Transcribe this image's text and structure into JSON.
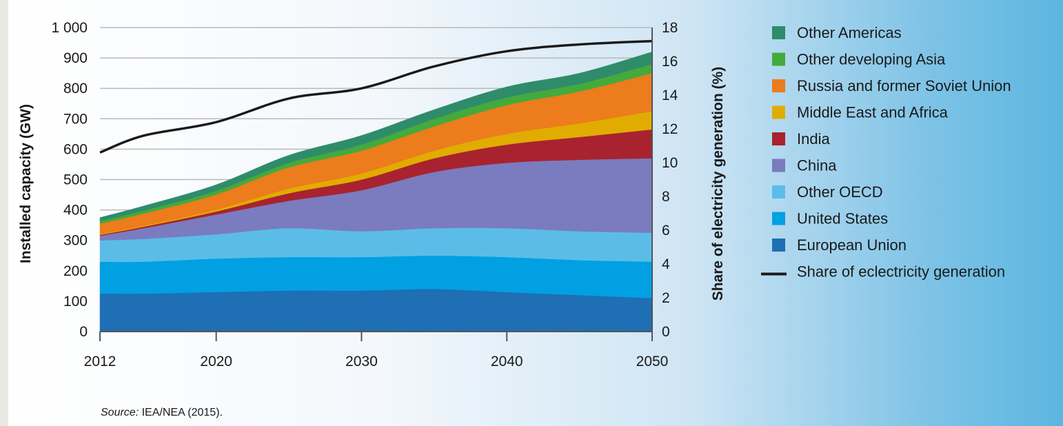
{
  "chart_data": {
    "type": "area",
    "stacked": true,
    "x": [
      2012,
      2015,
      2020,
      2025,
      2030,
      2035,
      2040,
      2045,
      2050
    ],
    "xticks": [
      "2012",
      "2020",
      "2030",
      "2040",
      "2050"
    ],
    "xlim": [
      2012,
      2050
    ],
    "ylabel": "Installed capacity (GW)",
    "ylim": [
      0,
      1000
    ],
    "yticks": [
      "0",
      "100",
      "200",
      "300",
      "400",
      "500",
      "600",
      "700",
      "800",
      "900",
      "1 000"
    ],
    "y2label": "Share of electricity generation (%)",
    "y2lim": [
      0,
      18
    ],
    "y2ticks": [
      "0",
      "2",
      "4",
      "6",
      "8",
      "10",
      "12",
      "14",
      "16",
      "18"
    ],
    "grid": true,
    "legend_position": "right",
    "series": [
      {
        "name": "European Union",
        "color": "#1e6fb4",
        "values": [
          125,
          125,
          130,
          135,
          135,
          140,
          130,
          120,
          110
        ]
      },
      {
        "name": "United States",
        "color": "#00a0e3",
        "values": [
          105,
          105,
          110,
          110,
          110,
          110,
          115,
          115,
          120
        ]
      },
      {
        "name": "Other OECD",
        "color": "#5bbde7",
        "values": [
          70,
          75,
          80,
          95,
          85,
          90,
          95,
          95,
          95
        ]
      },
      {
        "name": "China",
        "color": "#7b7bbf",
        "values": [
          15,
          35,
          65,
          90,
          135,
          185,
          215,
          235,
          245
        ]
      },
      {
        "name": "India",
        "color": "#a8232f",
        "values": [
          3,
          5,
          10,
          25,
          35,
          45,
          60,
          75,
          95
        ]
      },
      {
        "name": "Middle East and Africa",
        "color": "#e1ac00",
        "values": [
          2,
          3,
          6,
          15,
          20,
          25,
          35,
          45,
          60
        ]
      },
      {
        "name": "Russia and former Soviet Union",
        "color": "#ec7c1c",
        "values": [
          35,
          40,
          50,
          70,
          75,
          80,
          95,
          105,
          125
        ]
      },
      {
        "name": "Other developing Asia",
        "color": "#44aa3c",
        "values": [
          8,
          10,
          12,
          15,
          20,
          25,
          25,
          25,
          30
        ]
      },
      {
        "name": "Other Americas",
        "color": "#2f8c6a",
        "values": [
          12,
          15,
          20,
          25,
          30,
          30,
          35,
          35,
          40
        ]
      }
    ],
    "line": {
      "name": "Share of eclectricity generation",
      "color": "#1a1a1a",
      "axis": "right",
      "values": [
        10.6,
        11.6,
        12.4,
        13.8,
        14.4,
        15.7,
        16.6,
        17.0,
        17.2
      ]
    }
  },
  "legend_order": [
    "Other Americas",
    "Other developing Asia",
    "Russia and former Soviet Union",
    "Middle East and Africa",
    "India",
    "China",
    "Other OECD",
    "United States",
    "European Union"
  ],
  "source": {
    "label": "Source:",
    "text": " IEA/NEA (2015)."
  }
}
